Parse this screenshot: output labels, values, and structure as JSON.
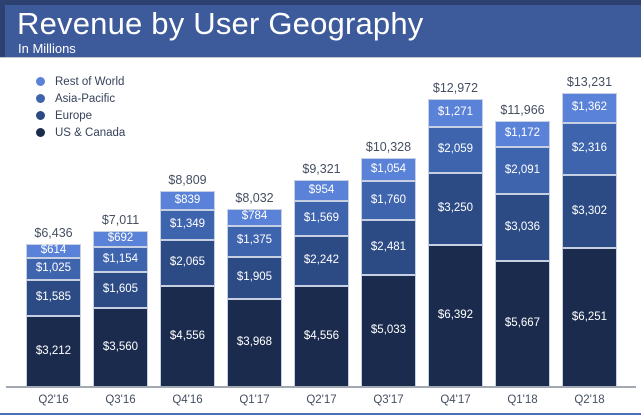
{
  "header": {
    "title": "Revenue by User Geography",
    "subtitle": "In Millions"
  },
  "chart_data": {
    "type": "bar",
    "stacked": true,
    "title": "Revenue by User Geography",
    "subtitle": "In Millions",
    "legend_position": "top-left",
    "grid": false,
    "ylim": [
      0,
      13231
    ],
    "categories": [
      "Q2'16",
      "Q3'16",
      "Q4'16",
      "Q1'17",
      "Q2'17",
      "Q3'17",
      "Q4'17",
      "Q1'18",
      "Q2'18"
    ],
    "series": [
      {
        "name": "Rest of World",
        "color": "#5a82d8",
        "values": [
          614,
          692,
          839,
          784,
          954,
          1054,
          1271,
          1172,
          1362
        ],
        "labels": [
          "$614",
          "$692",
          "$839",
          "$784",
          "$954",
          "$1,054",
          "$1,271",
          "$1,172",
          "$1,362"
        ]
      },
      {
        "name": "Asia-Pacific",
        "color": "#3e64ae",
        "values": [
          1025,
          1154,
          1349,
          1375,
          1569,
          1760,
          2059,
          2091,
          2316
        ],
        "labels": [
          "$1,025",
          "$1,154",
          "$1,349",
          "$1,375",
          "$1,569",
          "$1,760",
          "$2,059",
          "$2,091",
          "$2,316"
        ]
      },
      {
        "name": "Europe",
        "color": "#2c4a84",
        "values": [
          1585,
          1605,
          2065,
          1905,
          2242,
          2481,
          3250,
          3036,
          3302
        ],
        "labels": [
          "$1,585",
          "$1,605",
          "$2,065",
          "$1,905",
          "$2,242",
          "$2,481",
          "$3,250",
          "$3,036",
          "$3,302"
        ]
      },
      {
        "name": "US & Canada",
        "color": "#1b2b4e",
        "values": [
          3212,
          3560,
          4556,
          3968,
          4556,
          5033,
          6392,
          5667,
          6251
        ],
        "labels": [
          "$3,212",
          "$3,560",
          "$4,556",
          "$3,968",
          "$4,556",
          "$5,033",
          "$6,392",
          "$5,667",
          "$6,251"
        ]
      }
    ],
    "totals": {
      "values": [
        6436,
        7011,
        8809,
        8032,
        9321,
        10328,
        12972,
        11966,
        13231
      ],
      "labels": [
        "$6,436",
        "$7,011",
        "$8,809",
        "$8,032",
        "$9,321",
        "$10,328",
        "$12,972",
        "$11,966",
        "$13,231"
      ]
    },
    "colors": {
      "banner_bg": "#3d5a9b",
      "banner_edge": "#2c4170",
      "label_text": "#454f61",
      "axis_line": "#a3a9b3",
      "bottom_rule": "#4d6fb3",
      "segment_border": "#c6d0e2"
    }
  }
}
